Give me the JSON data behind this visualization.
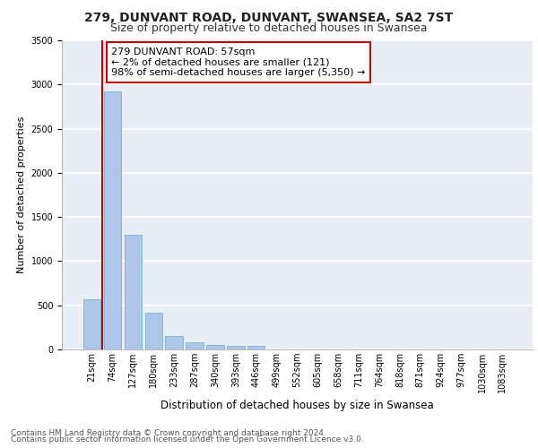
{
  "title1": "279, DUNVANT ROAD, DUNVANT, SWANSEA, SA2 7ST",
  "title2": "Size of property relative to detached houses in Swansea",
  "xlabel": "Distribution of detached houses by size in Swansea",
  "ylabel": "Number of detached properties",
  "categories": [
    "21sqm",
    "74sqm",
    "127sqm",
    "180sqm",
    "233sqm",
    "287sqm",
    "340sqm",
    "393sqm",
    "446sqm",
    "499sqm",
    "552sqm",
    "605sqm",
    "658sqm",
    "711sqm",
    "764sqm",
    "818sqm",
    "871sqm",
    "924sqm",
    "977sqm",
    "1030sqm",
    "1083sqm"
  ],
  "values": [
    570,
    2920,
    1300,
    415,
    155,
    80,
    48,
    42,
    38,
    0,
    0,
    0,
    0,
    0,
    0,
    0,
    0,
    0,
    0,
    0,
    0
  ],
  "bar_color": "#aec6e8",
  "bar_edge_color": "#6aabd2",
  "property_line_x": 0.5,
  "property_line_color": "#cc0000",
  "annotation_line1": "279 DUNVANT ROAD: 57sqm",
  "annotation_line2": "← 2% of detached houses are smaller (121)",
  "annotation_line3": "98% of semi-detached houses are larger (5,350) →",
  "annotation_box_color": "#ffffff",
  "annotation_border_color": "#cc0000",
  "footer_line1": "Contains HM Land Registry data © Crown copyright and database right 2024.",
  "footer_line2": "Contains public sector information licensed under the Open Government Licence v3.0.",
  "ylim": [
    0,
    3500
  ],
  "yticks": [
    0,
    500,
    1000,
    1500,
    2000,
    2500,
    3000,
    3500
  ],
  "background_color": "#e8eef5",
  "grid_color": "#ffffff",
  "title1_fontsize": 10,
  "title2_fontsize": 9,
  "xlabel_fontsize": 8.5,
  "ylabel_fontsize": 8,
  "tick_fontsize": 7,
  "annotation_fontsize": 8,
  "footer_fontsize": 6.5
}
